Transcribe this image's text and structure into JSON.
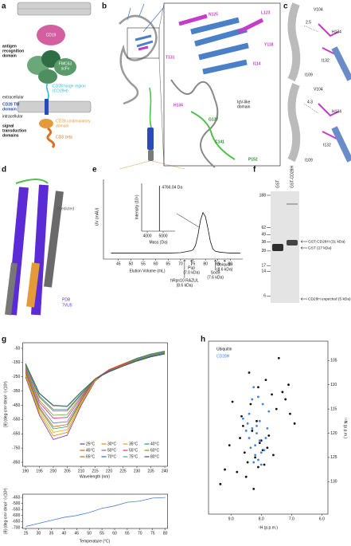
{
  "panel_letters": [
    "a",
    "b",
    "c",
    "d",
    "e",
    "f",
    "g",
    "h"
  ],
  "panel_a": {
    "antigen_domain": [
      "antigen",
      "recognition",
      "domain"
    ],
    "cd19": "CD19",
    "scfv": [
      "FMC63",
      "scFv"
    ],
    "hinge": [
      "CD28 hinge region",
      "(CD28H)"
    ],
    "extracellular": "extracellular",
    "tm": [
      "CD28 TM",
      "domain"
    ],
    "intracellular": "intracellular",
    "signal": [
      "signal",
      "transduction",
      "domains"
    ],
    "costim": [
      "CD28 costimulatory",
      "domain"
    ],
    "cd3z": "CD3 zeta"
  },
  "panel_b": {
    "residues": [
      "N125",
      "L123",
      "T131",
      "Y118",
      "I114",
      "H134",
      "G137",
      "C141",
      "P152"
    ],
    "domain": [
      "IgV-like",
      "domain"
    ]
  },
  "panel_c": {
    "top": [
      "V104",
      2.5,
      "H134",
      "I132",
      "I109"
    ],
    "bottom": [
      "V104",
      4.3,
      "H134",
      "I132",
      "I109"
    ]
  },
  "panel_d": {
    "predicted": "Predicted",
    "pdb": [
      "PDB",
      "7VU5"
    ]
  },
  "panel_f": {
    "lanes": [
      "GST",
      "GST-CD28H"
    ],
    "ladder": [
      188,
      62,
      49,
      38,
      28,
      17,
      14,
      6
    ],
    "bands": [
      "GST-CD28H (31 kDa)",
      "GST (27 kDa)",
      "CD28H expected (5 kDa)"
    ]
  },
  "chart_data": [
    {
      "type": "line",
      "xlabel": "Elution Volume (mL)",
      "ylabel": "UV (mAU)",
      "color": "#111111",
      "x": [
        42,
        45,
        50,
        55,
        60,
        65,
        70,
        72,
        73,
        74,
        75,
        76,
        77,
        78,
        79,
        80,
        81,
        82,
        83,
        84,
        86,
        88,
        90,
        92,
        94
      ],
      "values": [
        8,
        8,
        8,
        8,
        8,
        8,
        9,
        11,
        12,
        13,
        15,
        25,
        48,
        80,
        97,
        88,
        62,
        33,
        17,
        12,
        10,
        9,
        8,
        8,
        8
      ],
      "xlim": [
        39,
        95
      ],
      "ylim": [
        -5,
        170
      ],
      "xticks": [
        45,
        50,
        55,
        60,
        65,
        70,
        75,
        80,
        85,
        90
      ],
      "markers": [
        {
          "label": [
            "hRpn10 RAZUL",
            "(8.6 kDa)"
          ],
          "x": 71.6
        },
        {
          "label": [
            "Pup",
            "(7.0 kDa)"
          ],
          "x": 74.4
        },
        {
          "label": [
            "SocB",
            "(7.6 kDa)"
          ],
          "x": 84
        },
        {
          "label": [
            "Ubiquitin",
            "(8.6 kDa)"
          ],
          "x": 87.7
        }
      ]
    },
    {
      "type": "stem",
      "xlabel": "Mass (Da)",
      "ylabel": "Intensity (10⁵)",
      "color": "#111111",
      "x": [
        4766.04
      ],
      "values": [
        95
      ],
      "value_labels": [
        "4766.04 Da"
      ],
      "xlim": [
        3650,
        5750
      ],
      "ylim": [
        0,
        100
      ],
      "xticks": [
        4000,
        5000
      ]
    },
    {
      "type": "line",
      "xlabel": "Wavelength (nm)",
      "ylabel": "[θ] (deg·cm²·dmol⁻¹) (10³)",
      "x": [
        190,
        195,
        200,
        205,
        210,
        215,
        220,
        225,
        230,
        235,
        240
      ],
      "xlim": [
        189,
        241
      ],
      "ylim": [
        -878,
        -11
      ],
      "xticks": [
        190,
        195,
        200,
        205,
        210,
        215,
        220,
        225,
        230,
        235,
        240
      ],
      "yticks": [
        -50,
        -150,
        -250,
        -350,
        -450,
        -550,
        -650,
        -750,
        -850
      ],
      "series": [
        {
          "name": "25°C",
          "color": "#6a3d9a",
          "values": [
            -250,
            -520,
            -690,
            -660,
            -450,
            -280,
            -200,
            -160,
            -120,
            -90,
            -70
          ]
        },
        {
          "name": "30°C",
          "color": "#ff7f00",
          "values": [
            -240,
            -505,
            -665,
            -640,
            -440,
            -275,
            -200,
            -160,
            -120,
            -90,
            -70
          ]
        },
        {
          "name": "35°C",
          "color": "#e6ab02",
          "values": [
            -230,
            -490,
            -640,
            -620,
            -430,
            -270,
            -200,
            -160,
            -120,
            -90,
            -70
          ]
        },
        {
          "name": "40°C",
          "color": "#1b9e77",
          "values": [
            -220,
            -475,
            -615,
            -600,
            -420,
            -265,
            -200,
            -160,
            -120,
            -90,
            -70
          ]
        },
        {
          "name": "45°C",
          "color": "#d95f02",
          "values": [
            -210,
            -465,
            -600,
            -585,
            -415,
            -265,
            -200,
            -160,
            -125,
            -95,
            -75
          ]
        },
        {
          "name": "50°C",
          "color": "#7570b3",
          "values": [
            -200,
            -450,
            -575,
            -565,
            -405,
            -265,
            -205,
            -165,
            -125,
            -95,
            -75
          ]
        },
        {
          "name": "55°C",
          "color": "#e7298a",
          "values": [
            -190,
            -430,
            -540,
            -535,
            -395,
            -265,
            -205,
            -165,
            -130,
            -100,
            -80
          ]
        },
        {
          "name": "60°C",
          "color": "#66a61e",
          "values": [
            -180,
            -415,
            -520,
            -515,
            -385,
            -265,
            -210,
            -170,
            -130,
            -100,
            -80
          ]
        },
        {
          "name": "65°C",
          "color": "#a6761d",
          "values": [
            -170,
            -395,
            -490,
            -490,
            -375,
            -265,
            -210,
            -170,
            -135,
            -105,
            -85
          ]
        },
        {
          "name": "70°C",
          "color": "#1f78b4",
          "values": [
            -165,
            -385,
            -480,
            -480,
            -370,
            -265,
            -210,
            -175,
            -135,
            -105,
            -85
          ]
        },
        {
          "name": "75°C",
          "color": "#4fa88f",
          "values": [
            -160,
            -370,
            -455,
            -460,
            -360,
            -265,
            -215,
            -175,
            -140,
            -110,
            -90
          ]
        },
        {
          "name": "80°C",
          "color": "#4d4d4d",
          "values": [
            -155,
            -365,
            -450,
            -455,
            -355,
            -265,
            -215,
            -175,
            -140,
            -110,
            -90
          ]
        }
      ]
    },
    {
      "type": "line",
      "xlabel": "Temperature (°C)",
      "ylabel": "[θ] (deg·cm²·dmol⁻¹) (10³)",
      "color": "#4a7fd0",
      "x": [
        25,
        30,
        35,
        40,
        45,
        50,
        55,
        60,
        65,
        70,
        75,
        80
      ],
      "values": [
        -690,
        -665,
        -640,
        -615,
        -600,
        -575,
        -540,
        -520,
        -490,
        -480,
        -455,
        -450
      ],
      "xlim": [
        23.7,
        80.9
      ],
      "ylim": [
        -707,
        -423
      ],
      "xticks": [
        25,
        30,
        35,
        40,
        45,
        50,
        55,
        60,
        65,
        70,
        75,
        80
      ],
      "yticks": [
        -700,
        -650,
        -600,
        -550,
        -500,
        -450
      ]
    },
    {
      "type": "scatter",
      "xlabel": "¹H (p.p.m.)",
      "ylabel": "¹⁵N (p.p.m.)",
      "xlim": [
        9.74,
        5.8
      ],
      "ylim": [
        136.7,
        101
      ],
      "xticks": [
        {
          "value": 9,
          "label": "9.0"
        },
        {
          "value": 8,
          "label": "8.0"
        },
        {
          "value": 7,
          "label": "7.0"
        },
        {
          "value": 6,
          "label": "6.0"
        }
      ],
      "yticks": [
        105,
        110,
        115,
        120,
        125,
        130
      ],
      "series": [
        {
          "name": "Ubiquitin",
          "color": "#111111",
          "x": [
            7.42,
            8.95,
            8.4,
            8.1,
            7.85,
            7.65,
            7.3,
            7.2,
            7.05,
            8.6,
            8.7,
            8.3,
            8.05,
            7.95,
            8.2,
            8.45,
            8.55,
            9.2,
            9.35,
            8.15,
            7.75,
            7.5,
            8.8,
            8.25,
            7.9,
            8.35,
            8.0,
            7.6,
            8.5,
            9.05,
            6.9,
            7.1,
            8.65,
            8.1,
            7.8
          ],
          "values": [
            104.5,
            113.5,
            107.5,
            110.5,
            109,
            112,
            111.5,
            113,
            116,
            118.5,
            121,
            119.5,
            122,
            123.5,
            125,
            126,
            124,
            127.5,
            130.5,
            117.5,
            120.5,
            115,
            128,
            131.5,
            126.5,
            114,
            121.5,
            124.5,
            129,
            122.5,
            118,
            110,
            116.5,
            127,
            123
          ]
        },
        {
          "name": "CD28H",
          "color": "#3d86e0",
          "x": [
            8.25,
            8.1,
            7.95,
            8.4,
            8.05,
            8.3,
            8.15,
            7.85,
            8.2,
            8.35,
            8.0,
            8.45,
            7.75,
            8.1,
            8.25,
            8.05,
            8.5,
            7.9,
            8.3,
            8.15,
            8.0,
            8.4,
            7.8,
            8.2,
            8.6
          ],
          "values": [
            110.5,
            112.5,
            114,
            116,
            117.5,
            119,
            120,
            121,
            122.5,
            123,
            124,
            118,
            115.5,
            125.5,
            126,
            121.5,
            119.5,
            123.5,
            113,
            118.5,
            126.5,
            121,
            119,
            124.5,
            117
          ]
        }
      ]
    }
  ]
}
